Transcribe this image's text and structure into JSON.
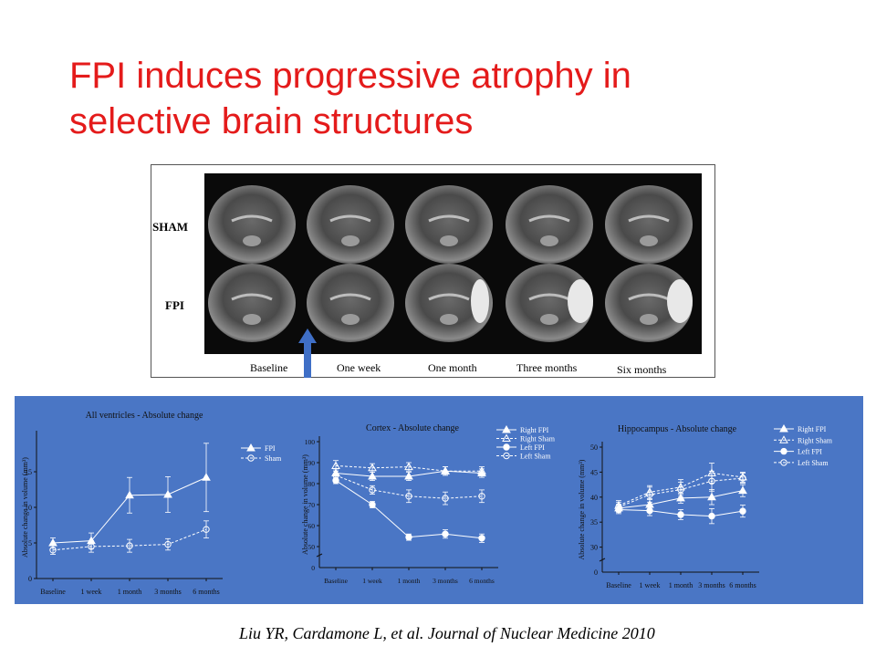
{
  "slide": {
    "title_line1": "FPI induces progressive atrophy in",
    "title_line2": "selective brain structures",
    "citation": "Liu YR, Cardamone L, et al. Journal of Nuclear Medicine 2010"
  },
  "mri_figure": {
    "row_labels": [
      "SHAM",
      "FPI"
    ],
    "timepoints": [
      "Baseline",
      "One week",
      "One month",
      "Three months",
      "Six months"
    ],
    "arrow_color": "#3f6fc6"
  },
  "colors": {
    "title": "#e41b1b",
    "panel_bg": "#4a76c5",
    "axis": "#111111"
  },
  "chart_data": [
    {
      "type": "line",
      "title": "All ventricles - Absolute change",
      "ylabel": "Absolute change in volume (mm³)",
      "x": [
        "Baseline",
        "1 week",
        "1 month",
        "3 months",
        "6 months"
      ],
      "ylim": [
        0,
        20
      ],
      "yticks": [
        "0",
        "5",
        "10",
        "15"
      ],
      "legend": "top-right",
      "series": [
        {
          "name": "FPI",
          "marker": "filled-triangle",
          "line": "solid",
          "values": [
            5,
            5.3,
            11.7,
            11.8,
            14.2
          ],
          "err": [
            0.7,
            1.1,
            2.5,
            2.5,
            4.8
          ]
        },
        {
          "name": "Sham",
          "marker": "open-circle",
          "line": "dashed",
          "values": [
            4,
            4.5,
            4.6,
            4.8,
            6.9
          ],
          "err": [
            0.6,
            0.8,
            0.9,
            0.8,
            1.2
          ]
        }
      ]
    },
    {
      "type": "line",
      "title": "Cortex - Absolute change",
      "ylabel": "Absolute change in volume (mm³)",
      "x": [
        "Baseline",
        "1 week",
        "1 month",
        "3 months",
        "6 months"
      ],
      "ylim": [
        40,
        100
      ],
      "ytick_values": [
        50,
        60,
        70,
        80,
        90,
        100
      ],
      "yticks": [
        "50",
        "60",
        "70",
        "80",
        "90",
        "100"
      ],
      "axis_break": true,
      "zero_label": "0",
      "legend": "top-right",
      "series": [
        {
          "name": "Right FPI",
          "marker": "filled-triangle",
          "line": "solid",
          "values": [
            85,
            83.5,
            83.5,
            86,
            85
          ],
          "err": [
            2,
            2,
            2,
            2,
            2
          ]
        },
        {
          "name": "Right Sham",
          "marker": "open-triangle",
          "line": "dashed",
          "values": [
            88.5,
            87.5,
            88,
            86,
            86
          ],
          "err": [
            2.5,
            2,
            2,
            2,
            2
          ]
        },
        {
          "name": "Left FPI",
          "marker": "filled-circle",
          "line": "solid",
          "values": [
            81.5,
            70,
            54.5,
            56,
            54
          ],
          "err": [
            1.5,
            1.5,
            1.5,
            2,
            2
          ]
        },
        {
          "name": "Left Sham",
          "marker": "open-circle",
          "line": "dashed",
          "values": [
            84,
            77,
            74,
            73,
            74
          ],
          "err": [
            2,
            2,
            3,
            3,
            3
          ]
        }
      ]
    },
    {
      "type": "line",
      "title": "Hippocampus - Absolute change",
      "ylabel": "Absolute change in volume (mm³)",
      "x": [
        "Baseline",
        "1 week",
        "1 month",
        "3 months",
        "6 months"
      ],
      "ylim": [
        25,
        50
      ],
      "ytick_values": [
        30,
        35,
        40,
        45,
        50
      ],
      "yticks": [
        "30",
        "35",
        "40",
        "45",
        "50"
      ],
      "axis_break": true,
      "zero_label": "0",
      "legend": "top-right",
      "series": [
        {
          "name": "Right FPI",
          "marker": "filled-triangle",
          "line": "solid",
          "values": [
            37.8,
            38.5,
            39.8,
            40,
            41.3
          ],
          "err": [
            0.8,
            1,
            1,
            1.5,
            1.2
          ]
        },
        {
          "name": "Right Sham",
          "marker": "open-triangle",
          "line": "dashed",
          "values": [
            38.3,
            41,
            42,
            44.8,
            44
          ],
          "err": [
            1,
            1.3,
            1.5,
            2,
            1
          ]
        },
        {
          "name": "Left FPI",
          "marker": "filled-circle",
          "line": "solid",
          "values": [
            37.5,
            37.3,
            36.5,
            36.2,
            37.2
          ],
          "err": [
            0.8,
            1,
            1,
            1.5,
            1.2
          ]
        },
        {
          "name": "Left Sham",
          "marker": "open-circle",
          "line": "dashed",
          "values": [
            38,
            40.5,
            41.5,
            43.2,
            43.8
          ],
          "err": [
            1,
            1.5,
            1.5,
            2,
            1
          ]
        }
      ]
    }
  ]
}
